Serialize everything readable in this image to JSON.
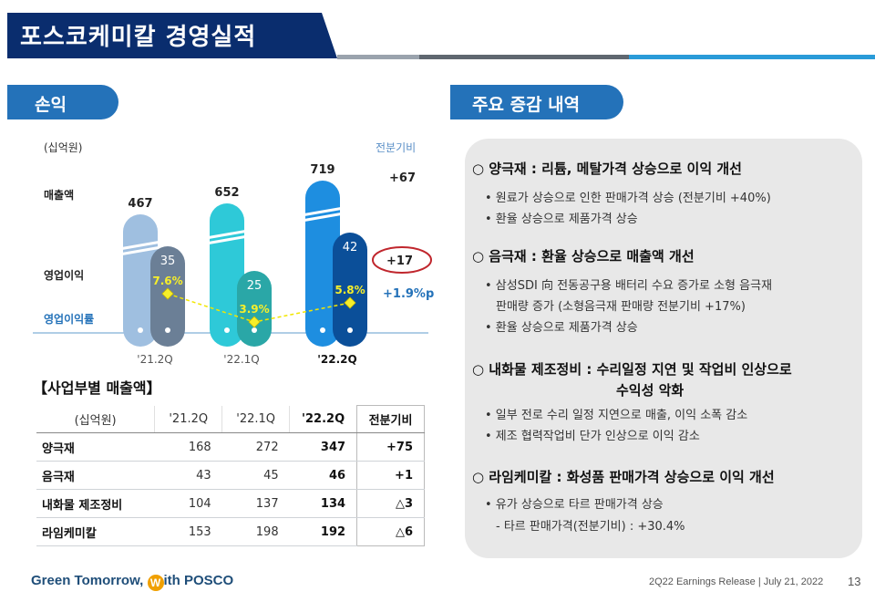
{
  "title": "포스코케미칼 경영실적",
  "left_section": {
    "label": "손익",
    "unit": "(십억원)",
    "diff_header": "전분기비",
    "row_labels": {
      "revenue": "매출액",
      "op_income": "영업이익",
      "op_margin": "영업이익률"
    },
    "diff_revenue": "+67",
    "diff_op_income": "+17",
    "diff_margin": "+1.9%p"
  },
  "chart_data": {
    "type": "bar",
    "categories": [
      "'21.2Q",
      "'22.1Q",
      "'22.2Q"
    ],
    "series": [
      {
        "name": "매출액",
        "values": [
          467,
          652,
          719
        ]
      },
      {
        "name": "영업이익",
        "values": [
          35,
          25,
          42
        ]
      },
      {
        "name": "영업이익률",
        "values": [
          7.6,
          3.9,
          5.8
        ],
        "unit": "%"
      }
    ],
    "colors": {
      "revenue": [
        "#9fbfe0",
        "#2ec9d8",
        "#1e8ee0"
      ],
      "op_income": [
        "#6b7f96",
        "#2aa7a7",
        "#0b4f99"
      ],
      "margin_line": "#f2e600",
      "margin_marker": "#f7ef2a"
    },
    "margin_labels": [
      "7.6%",
      "3.9%",
      "5.8%"
    ]
  },
  "segment_table": {
    "title": "【사업부별 매출액】",
    "headers": [
      "(십억원)",
      "'21.2Q",
      "'22.1Q",
      "'22.2Q",
      "전분기비"
    ],
    "rows": [
      {
        "name": "양극재",
        "q1": "168",
        "q2": "272",
        "q3": "347",
        "diff": "+75"
      },
      {
        "name": "음극재",
        "q1": "43",
        "q2": "45",
        "q3": "46",
        "diff": "+1"
      },
      {
        "name": "내화물 제조정비",
        "q1": "104",
        "q2": "137",
        "q3": "134",
        "diff": "△3"
      },
      {
        "name": "라임케미칼",
        "q1": "153",
        "q2": "198",
        "q3": "192",
        "diff": "△6"
      }
    ]
  },
  "right_section": {
    "label": "주요 증감 내역",
    "blocks": [
      {
        "head": "○ 양극재 : 리튬, 메탈가격 상승으로 이익 개선",
        "items": [
          "• 원료가 상승으로 인한 판매가격 상승 (전분기비 +40%)",
          "• 환율 상승으로 제품가격 상승"
        ]
      },
      {
        "head": "○ 음극재 : 환율 상승으로 매출액 개선",
        "items": [
          "• 삼성SDI 向 전동공구용 배터리 수요 증가로 소형 음극재",
          "판매량 증가 (소형음극재 판매량 전분기비 +17%)",
          "• 환율 상승으로 제품가격 상승"
        ]
      },
      {
        "head": "○ 내화물 제조정비 : 수리일정 지연 및 작업비 인상으로",
        "head2": "수익성 악화",
        "items": [
          "• 일부 전로 수리 일정 지연으로 매출, 이익 소폭 감소",
          "• 제조 협력작업비 단가 인상으로 이익 감소"
        ]
      },
      {
        "head": "○ 라임케미칼 : 화성품 판매가격 상승으로 이익 개선",
        "items": [
          "• 유가 상승으로 타르 판매가격 상승",
          "- 타르 판매가격(전분기비) :  +30.4%"
        ]
      }
    ]
  },
  "footer": {
    "slogan_prefix": "Green Tomorrow, ",
    "slogan_logo": "W",
    "slogan_suffix": "ith POSCO",
    "release": "2Q22 Earnings Release  |  July 21, 2022",
    "page": "13"
  }
}
